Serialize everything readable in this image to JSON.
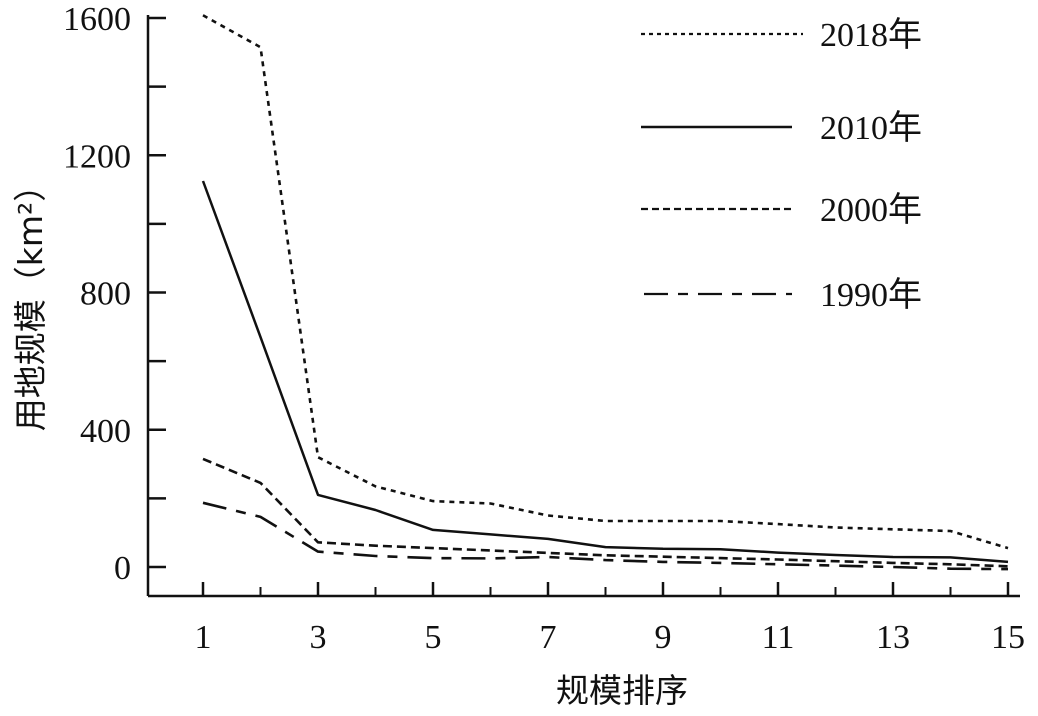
{
  "chart_data": {
    "type": "line",
    "title": "",
    "xlabel": "规模排序",
    "ylabel": "用地规模（km²）",
    "xlim": [
      0,
      15.2
    ],
    "ylim": [
      -200,
      1650
    ],
    "x_ticks": [
      1,
      3,
      5,
      7,
      9,
      11,
      13,
      15
    ],
    "x_minor_ticks": [
      2,
      4,
      6,
      8,
      10,
      12,
      14
    ],
    "y_ticks": [
      0,
      400,
      800,
      1200,
      1600
    ],
    "y_minor_ticks": [
      200,
      600,
      1000,
      1400
    ],
    "grid": false,
    "legend_position": "upper right",
    "x": [
      1,
      2,
      3,
      4,
      5,
      6,
      7,
      8,
      9,
      10,
      11,
      12,
      13,
      14,
      15
    ],
    "series": [
      {
        "name": "2018年",
        "style": "dotted",
        "values": [
          1608,
          1515,
          320,
          235,
          192,
          185,
          150,
          134,
          134,
          134,
          125,
          115,
          110,
          105,
          55
        ]
      },
      {
        "name": "2010年",
        "style": "solid",
        "values": [
          1125,
          670,
          210,
          166,
          108,
          95,
          82,
          58,
          53,
          52,
          42,
          35,
          29,
          28,
          15
        ]
      },
      {
        "name": "2000年",
        "style": "dashed",
        "values": [
          315,
          245,
          72,
          62,
          55,
          48,
          41,
          34,
          30,
          26,
          22,
          17,
          12,
          8,
          2
        ]
      },
      {
        "name": "1990年",
        "style": "long-dashed",
        "values": [
          187,
          146,
          45,
          32,
          26,
          25,
          29,
          20,
          15,
          12,
          8,
          4,
          0,
          -5,
          -6
        ]
      }
    ]
  },
  "legend": {
    "items": [
      {
        "label": "2018年",
        "style": "dotted"
      },
      {
        "label": "2010年",
        "style": "solid"
      },
      {
        "label": "2000年",
        "style": "dashed"
      },
      {
        "label": "1990年",
        "style": "long-dashed"
      }
    ]
  },
  "colors": {
    "line": "#111111",
    "axis": "#111111",
    "background": "#ffffff"
  }
}
